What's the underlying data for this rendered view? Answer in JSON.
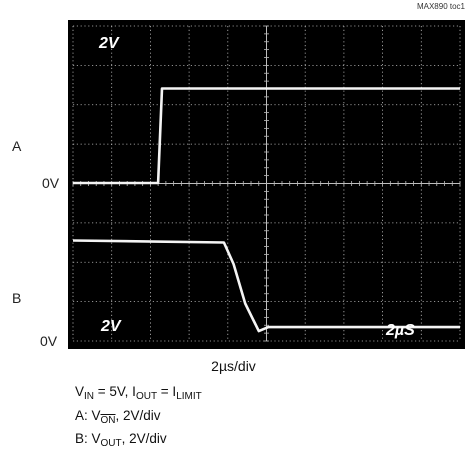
{
  "figure_id": "MAX890 toc1",
  "channel_a_label": "A",
  "channel_b_label": "B",
  "channel_a_zero": "0V",
  "channel_b_zero": "0V",
  "scope_annotations": {
    "top_left": "2V",
    "bottom_left": "2V",
    "bottom_right": "2µS"
  },
  "time_scale": "2µs/div",
  "caption": {
    "line1": {
      "vin": "V",
      "vin_sub": "IN",
      "vin_val": " = 5V,  I",
      "iout_sub": "OUT",
      "eq": " = I",
      "ilimit_sub": "LIMIT"
    },
    "line2": {
      "prefix": "A: V",
      "sub": "ON",
      "suffix": ", 2V/div"
    },
    "line3": {
      "prefix": "B: V",
      "sub": "OUT",
      "suffix": ", 2V/div"
    }
  },
  "colors": {
    "screen": "#000000",
    "trace": "#f4f4f4",
    "grid": "#bdbdbd"
  },
  "chart_data": {
    "type": "line",
    "x_units": "µs",
    "x_range": [
      0,
      20
    ],
    "y_units": "V",
    "y_range_divisions": [
      0,
      8
    ],
    "grid": true,
    "series": [
      {
        "x": [
          0,
          4.4,
          4.6,
          20
        ],
        "y": [
          0,
          0,
          4.8,
          4.8
        ]
      },
      {
        "x": [
          0,
          7.8,
          8.3,
          8.9,
          9.6,
          10.1,
          20
        ],
        "y": [
          4.8,
          4.7,
          3.6,
          1.6,
          0.2,
          0.4,
          0.4
        ]
      }
    ]
  }
}
